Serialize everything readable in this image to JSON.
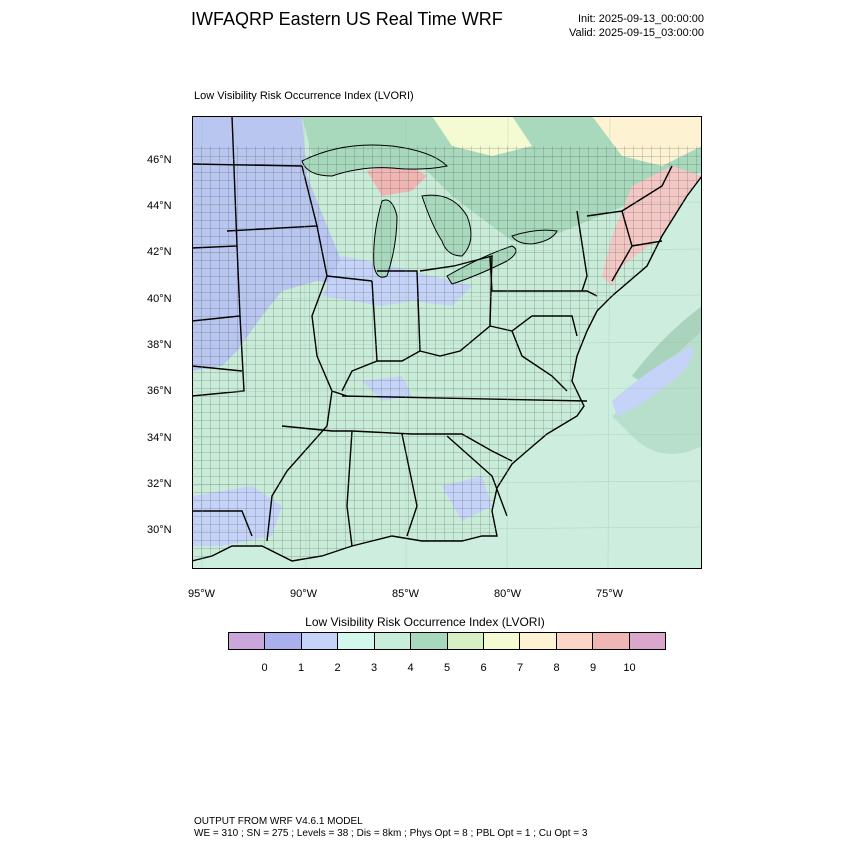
{
  "header": {
    "title": "IWFAQRP Eastern US Real Time WRF",
    "init": "Init: 2025-09-13_00:00:00",
    "valid": "Valid: 2025-09-15_03:00:00"
  },
  "map": {
    "subtitle": "Low Visibility Risk Occurrence Index   (LVORI)",
    "lat_labels": [
      "46°N",
      "44°N",
      "42°N",
      "40°N",
      "38°N",
      "36°N",
      "34°N",
      "32°N",
      "30°N"
    ],
    "lon_labels": [
      "95°W",
      "90°W",
      "85°W",
      "80°W",
      "75°W"
    ],
    "colors": {
      "ocean": "#cdeede",
      "land_default": "#c9ecd9",
      "lake": "#b9e8d6",
      "blue_region": "#b9c6ef",
      "light_blue": "#c8d9f5",
      "green_canada": "#a7d6b6",
      "pink": "#f3c7c4",
      "yellow": "#f8f3cd",
      "light_green": "#d4ecc4"
    }
  },
  "colorbar": {
    "title": "Low Visibility Risk Occurrence Index  (LVORI)",
    "colors": [
      "#caa6da",
      "#aab0ee",
      "#c4d3f7",
      "#d2f8ee",
      "#c6eedb",
      "#a8d9bd",
      "#d6f0c3",
      "#f4fbd3",
      "#fdf3d2",
      "#fbd5c6",
      "#f0b6b4",
      "#dba6cb"
    ],
    "tick_labels": [
      "0",
      "1",
      "2",
      "3",
      "4",
      "5",
      "6",
      "7",
      "8",
      "9",
      "10"
    ]
  },
  "footer": {
    "line1": "OUTPUT FROM WRF V4.6.1 MODEL",
    "line2": "WE = 310 ; SN = 275 ; Levels = 38 ; Dis = 8km ; Phys Opt = 8 ; PBL Opt = 1 ; Cu Opt = 3"
  }
}
